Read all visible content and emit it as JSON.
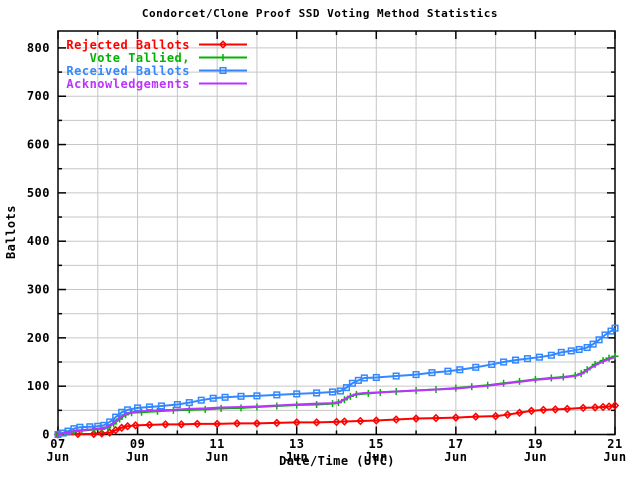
{
  "chart_data": {
    "type": "line",
    "title": "Condorcet/Clone Proof SSD Voting Method Statistics",
    "xlabel": "Date/Time (UTC)",
    "ylabel": "Ballots",
    "xlim_days": [
      0,
      14
    ],
    "x_start_label": "07 Jun",
    "x_end_label": "21 Jun",
    "ylim": [
      0,
      835
    ],
    "grid": true,
    "grid_color": "#c6c6c6",
    "border_color": "#000000",
    "background": "#ffffff",
    "legend_position": "top-left",
    "y_tick_values": [
      0,
      100,
      200,
      300,
      400,
      500,
      600,
      700,
      800
    ],
    "y_tick_labels": [
      "0",
      "100",
      "200",
      "300",
      "400",
      "500",
      "600",
      "700",
      "800"
    ],
    "y_minor_step": 50,
    "x_tick_days": [
      0,
      2,
      4,
      6,
      8,
      10,
      12,
      14
    ],
    "x_tick_labels": [
      [
        "07",
        "Jun"
      ],
      [
        "09",
        "Jun"
      ],
      [
        "11",
        "Jun"
      ],
      [
        "13",
        "Jun"
      ],
      [
        "15",
        "Jun"
      ],
      [
        "17",
        "Jun"
      ],
      [
        "19",
        "Jun"
      ],
      [
        "21",
        "Jun"
      ]
    ],
    "x_minor_step_days": 1,
    "series": [
      {
        "name": "Rejected Ballots",
        "color": "#ff0000",
        "marker": "diamond",
        "points": [
          [
            0,
            0
          ],
          [
            0.5,
            1
          ],
          [
            0.9,
            1
          ],
          [
            1.1,
            2
          ],
          [
            1.3,
            4
          ],
          [
            1.45,
            9
          ],
          [
            1.6,
            14
          ],
          [
            1.75,
            17
          ],
          [
            1.95,
            19
          ],
          [
            2.3,
            20
          ],
          [
            2.7,
            21
          ],
          [
            3.1,
            21
          ],
          [
            3.5,
            22
          ],
          [
            4.0,
            22
          ],
          [
            4.5,
            23
          ],
          [
            5.0,
            23
          ],
          [
            5.5,
            24
          ],
          [
            6.0,
            25
          ],
          [
            6.5,
            25
          ],
          [
            7.0,
            26
          ],
          [
            7.2,
            27
          ],
          [
            7.6,
            28
          ],
          [
            8.0,
            29
          ],
          [
            8.5,
            31
          ],
          [
            9.0,
            33
          ],
          [
            9.5,
            34
          ],
          [
            10.0,
            35
          ],
          [
            10.5,
            37
          ],
          [
            11.0,
            38
          ],
          [
            11.3,
            41
          ],
          [
            11.6,
            45
          ],
          [
            11.9,
            49
          ],
          [
            12.2,
            51
          ],
          [
            12.5,
            52
          ],
          [
            12.8,
            53
          ],
          [
            13.2,
            55
          ],
          [
            13.5,
            56
          ],
          [
            13.7,
            57
          ],
          [
            13.85,
            58
          ],
          [
            14.0,
            60
          ]
        ]
      },
      {
        "name": "Vote Tallied,",
        "color": "#00b400",
        "marker": "plus",
        "points": [
          [
            0,
            0
          ],
          [
            0.2,
            3
          ],
          [
            0.4,
            6
          ],
          [
            0.6,
            8
          ],
          [
            0.9,
            10
          ],
          [
            1.1,
            11
          ],
          [
            1.25,
            14
          ],
          [
            1.4,
            22
          ],
          [
            1.55,
            32
          ],
          [
            1.7,
            41
          ],
          [
            1.85,
            45
          ],
          [
            2.1,
            46
          ],
          [
            2.5,
            48
          ],
          [
            2.9,
            50
          ],
          [
            3.3,
            51
          ],
          [
            3.7,
            52
          ],
          [
            4.1,
            54
          ],
          [
            4.6,
            55
          ],
          [
            5.0,
            57
          ],
          [
            5.5,
            59
          ],
          [
            6.0,
            61
          ],
          [
            6.5,
            62
          ],
          [
            6.9,
            64
          ],
          [
            7.05,
            66
          ],
          [
            7.2,
            72
          ],
          [
            7.35,
            79
          ],
          [
            7.5,
            83
          ],
          [
            7.8,
            85
          ],
          [
            8.1,
            87
          ],
          [
            8.5,
            89
          ],
          [
            9.0,
            91
          ],
          [
            9.5,
            93
          ],
          [
            10.0,
            96
          ],
          [
            10.4,
            99
          ],
          [
            10.8,
            102
          ],
          [
            11.2,
            106
          ],
          [
            11.6,
            110
          ],
          [
            12.0,
            114
          ],
          [
            12.4,
            117
          ],
          [
            12.7,
            119
          ],
          [
            13.0,
            122
          ],
          [
            13.15,
            126
          ],
          [
            13.3,
            134
          ],
          [
            13.5,
            145
          ],
          [
            13.7,
            153
          ],
          [
            13.85,
            158
          ],
          [
            14.0,
            162
          ]
        ]
      },
      {
        "name": "Received Ballots",
        "color": "#3388ff",
        "marker": "square",
        "points": [
          [
            0,
            0
          ],
          [
            0.1,
            3
          ],
          [
            0.25,
            7
          ],
          [
            0.4,
            12
          ],
          [
            0.55,
            15
          ],
          [
            0.8,
            16
          ],
          [
            1.0,
            17
          ],
          [
            1.15,
            19
          ],
          [
            1.3,
            26
          ],
          [
            1.45,
            36
          ],
          [
            1.6,
            46
          ],
          [
            1.75,
            51
          ],
          [
            2.0,
            55
          ],
          [
            2.3,
            57
          ],
          [
            2.6,
            59
          ],
          [
            3.0,
            62
          ],
          [
            3.3,
            66
          ],
          [
            3.6,
            71
          ],
          [
            3.9,
            75
          ],
          [
            4.2,
            77
          ],
          [
            4.6,
            79
          ],
          [
            5.0,
            80
          ],
          [
            5.5,
            82
          ],
          [
            6.0,
            84
          ],
          [
            6.5,
            86
          ],
          [
            6.9,
            88
          ],
          [
            7.1,
            90
          ],
          [
            7.25,
            97
          ],
          [
            7.4,
            106
          ],
          [
            7.55,
            112
          ],
          [
            7.7,
            117
          ],
          [
            8.0,
            118
          ],
          [
            8.5,
            121
          ],
          [
            9.0,
            124
          ],
          [
            9.4,
            128
          ],
          [
            9.8,
            131
          ],
          [
            10.1,
            134
          ],
          [
            10.5,
            139
          ],
          [
            10.9,
            145
          ],
          [
            11.2,
            150
          ],
          [
            11.5,
            154
          ],
          [
            11.8,
            157
          ],
          [
            12.1,
            160
          ],
          [
            12.4,
            164
          ],
          [
            12.65,
            170
          ],
          [
            12.9,
            173
          ],
          [
            13.1,
            176
          ],
          [
            13.3,
            180
          ],
          [
            13.45,
            187
          ],
          [
            13.6,
            196
          ],
          [
            13.75,
            206
          ],
          [
            13.9,
            214
          ],
          [
            14.0,
            220
          ]
        ]
      },
      {
        "name": "Acknowledgements",
        "color": "#bb33ff",
        "marker": "none",
        "points": [
          [
            0,
            0
          ],
          [
            0.2,
            4
          ],
          [
            0.4,
            7
          ],
          [
            0.6,
            9
          ],
          [
            0.9,
            11
          ],
          [
            1.1,
            13
          ],
          [
            1.25,
            16
          ],
          [
            1.4,
            24
          ],
          [
            1.55,
            34
          ],
          [
            1.7,
            42
          ],
          [
            1.85,
            46
          ],
          [
            2.1,
            48
          ],
          [
            2.5,
            50
          ],
          [
            2.9,
            51
          ],
          [
            3.3,
            53
          ],
          [
            3.7,
            54
          ],
          [
            4.1,
            56
          ],
          [
            4.6,
            57
          ],
          [
            5.0,
            58
          ],
          [
            5.5,
            60
          ],
          [
            6.0,
            62
          ],
          [
            6.5,
            64
          ],
          [
            6.9,
            65
          ],
          [
            7.1,
            68
          ],
          [
            7.3,
            78
          ],
          [
            7.5,
            84
          ],
          [
            7.7,
            86
          ],
          [
            8.0,
            87
          ],
          [
            8.5,
            89
          ],
          [
            9.0,
            91
          ],
          [
            9.5,
            93
          ],
          [
            10.0,
            95
          ],
          [
            10.4,
            98
          ],
          [
            10.8,
            101
          ],
          [
            11.2,
            105
          ],
          [
            11.6,
            109
          ],
          [
            12.0,
            113
          ],
          [
            12.4,
            116
          ],
          [
            12.7,
            118
          ],
          [
            13.0,
            121
          ],
          [
            13.15,
            125
          ],
          [
            13.3,
            133
          ],
          [
            13.5,
            143
          ],
          [
            13.7,
            151
          ],
          [
            13.85,
            156
          ],
          [
            14.0,
            160
          ]
        ]
      }
    ]
  }
}
